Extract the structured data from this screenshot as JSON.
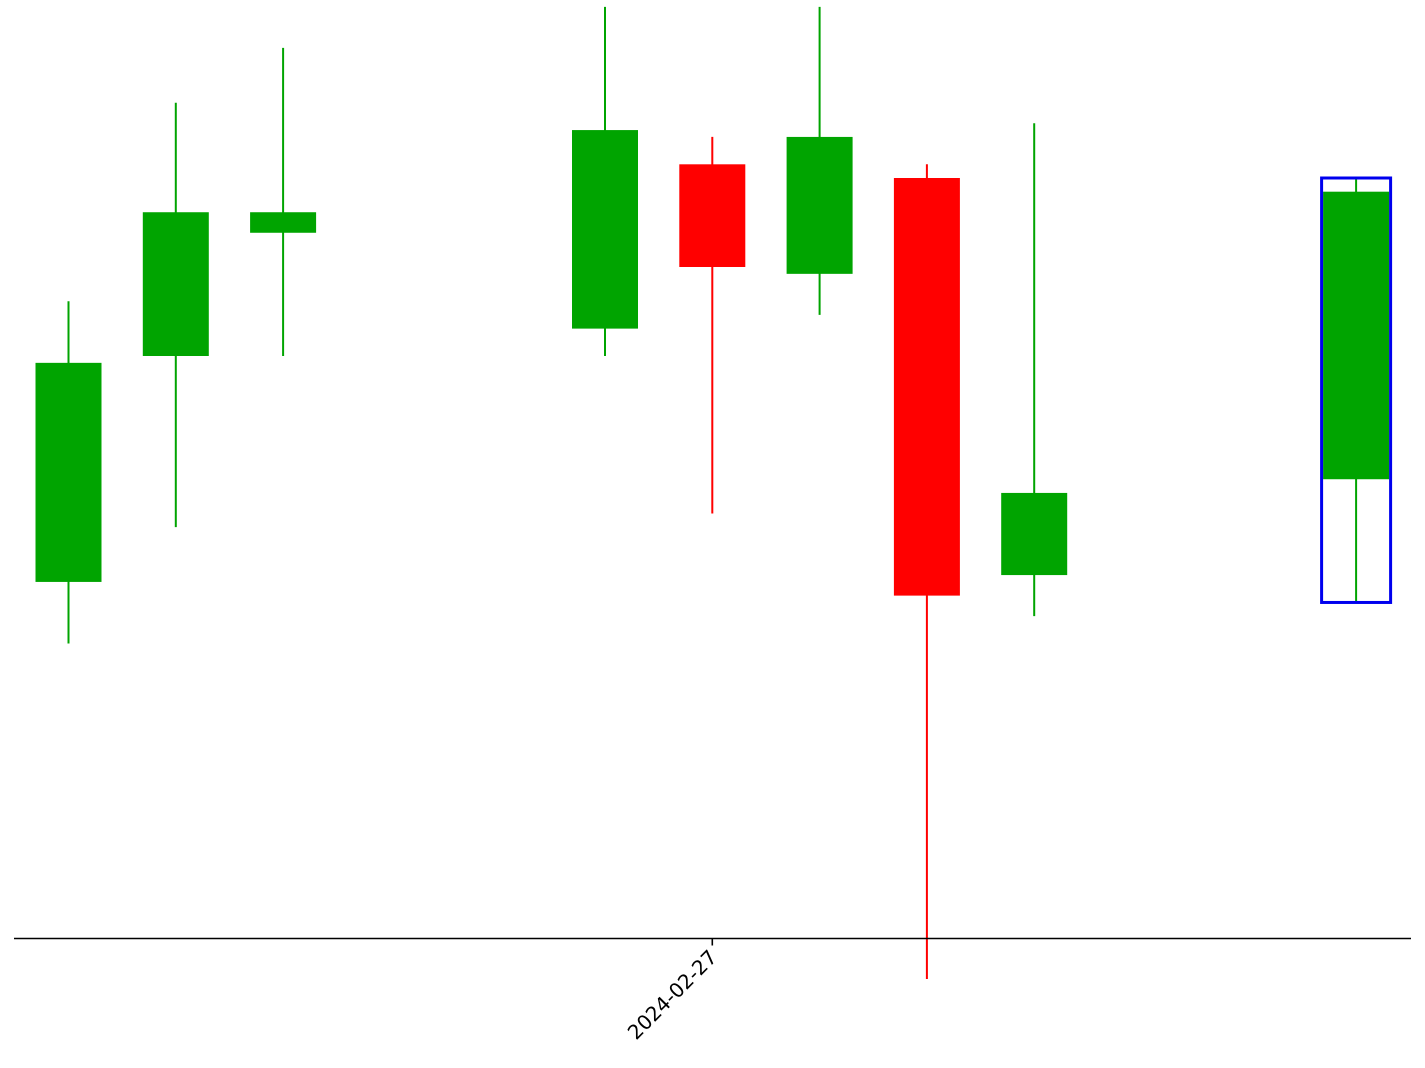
{
  "chart_data": {
    "type": "candlestick",
    "title": "",
    "xlabel": "",
    "ylabel": "",
    "x_tick_labels": [
      {
        "label": "2024-02-27",
        "index": 6
      }
    ],
    "ylim": [
      85,
      100.6
    ],
    "grid": false,
    "colors": {
      "up": "#00a400",
      "down": "#ff0000",
      "highlight": "#0000ee",
      "axis": "#000000"
    },
    "candles": [
      {
        "index": 0,
        "open": 92.1,
        "high": 96.2,
        "low": 91.2,
        "close": 95.3
      },
      {
        "index": 1,
        "open": 95.4,
        "high": 99.1,
        "low": 92.9,
        "close": 97.5
      },
      {
        "index": 2,
        "open": 97.2,
        "high": 99.9,
        "low": 95.4,
        "close": 97.5
      },
      {
        "index": 5,
        "open": 95.8,
        "high": 100.5,
        "low": 95.4,
        "close": 98.7
      },
      {
        "index": 6,
        "open": 98.2,
        "high": 98.6,
        "low": 93.1,
        "close": 96.7
      },
      {
        "index": 7,
        "open": 96.6,
        "high": 100.5,
        "low": 96.0,
        "close": 98.6
      },
      {
        "index": 8,
        "open": 98.0,
        "high": 98.2,
        "low": 86.3,
        "close": 91.9
      },
      {
        "index": 9,
        "open": 92.2,
        "high": 98.8,
        "low": 91.6,
        "close": 93.4
      },
      {
        "index": 12,
        "open": 93.6,
        "high": 98.0,
        "low": 91.8,
        "close": 97.8,
        "highlighted": true
      }
    ]
  }
}
